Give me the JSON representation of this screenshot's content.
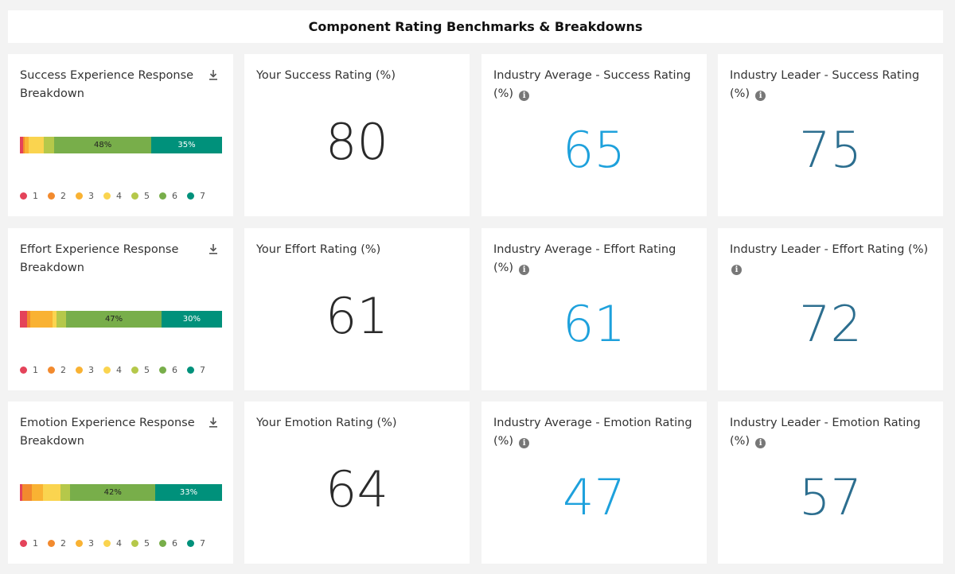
{
  "header": {
    "title": "Component Rating Benchmarks & Breakdowns"
  },
  "colors": {
    "1": "#e4435a",
    "2": "#f28a2e",
    "3": "#f9b233",
    "4": "#fad44f",
    "5": "#b5c84a",
    "6": "#78ae4a",
    "7": "#00917b",
    "value_dark": "#2a2a2a",
    "value_avg": "#1ea1dc",
    "value_leader": "#2c6e8f"
  },
  "legend": [
    "1",
    "2",
    "3",
    "4",
    "5",
    "6",
    "7"
  ],
  "rows": [
    {
      "breakdown": {
        "title": "Success Experience Response Breakdown",
        "segments": [
          {
            "key": "1",
            "pct": 1.5,
            "label": ""
          },
          {
            "key": "2",
            "pct": 1,
            "label": ""
          },
          {
            "key": "3",
            "pct": 2,
            "label": ""
          },
          {
            "key": "4",
            "pct": 7.5,
            "label": ""
          },
          {
            "key": "5",
            "pct": 5,
            "label": ""
          },
          {
            "key": "6",
            "pct": 48,
            "label": "48%"
          },
          {
            "key": "7",
            "pct": 35,
            "label": "35%"
          }
        ]
      },
      "yours": {
        "title": "Your Success Rating (%)",
        "value": "80"
      },
      "average": {
        "title": "Industry Average - Success Rating (%)",
        "value": "65"
      },
      "leader": {
        "title": "Industry Leader - Success Rating (%)",
        "value": "75"
      }
    },
    {
      "breakdown": {
        "title": "Effort Experience Response Breakdown",
        "segments": [
          {
            "key": "1",
            "pct": 3.5,
            "label": ""
          },
          {
            "key": "2",
            "pct": 1.5,
            "label": ""
          },
          {
            "key": "3",
            "pct": 11,
            "label": ""
          },
          {
            "key": "4",
            "pct": 2,
            "label": ""
          },
          {
            "key": "5",
            "pct": 5,
            "label": ""
          },
          {
            "key": "6",
            "pct": 47,
            "label": "47%"
          },
          {
            "key": "7",
            "pct": 30,
            "label": "30%"
          }
        ]
      },
      "yours": {
        "title": "Your Effort Rating (%)",
        "value": "61"
      },
      "average": {
        "title": "Industry Average - Effort Rating (%)",
        "value": "61"
      },
      "leader": {
        "title": "Industry Leader - Effort Rating (%)",
        "value": "72"
      }
    },
    {
      "breakdown": {
        "title": "Emotion Experience Response Breakdown",
        "segments": [
          {
            "key": "1",
            "pct": 1,
            "label": ""
          },
          {
            "key": "2",
            "pct": 5,
            "label": ""
          },
          {
            "key": "3",
            "pct": 5.5,
            "label": ""
          },
          {
            "key": "4",
            "pct": 8.5,
            "label": ""
          },
          {
            "key": "5",
            "pct": 5,
            "label": ""
          },
          {
            "key": "6",
            "pct": 42,
            "label": "42%"
          },
          {
            "key": "7",
            "pct": 33,
            "label": "33%"
          }
        ]
      },
      "yours": {
        "title": "Your Emotion Rating (%)",
        "value": "64"
      },
      "average": {
        "title": "Industry Average - Emotion Rating (%)",
        "value": "47"
      },
      "leader": {
        "title": "Industry Leader - Emotion Rating (%)",
        "value": "57"
      }
    }
  ]
}
